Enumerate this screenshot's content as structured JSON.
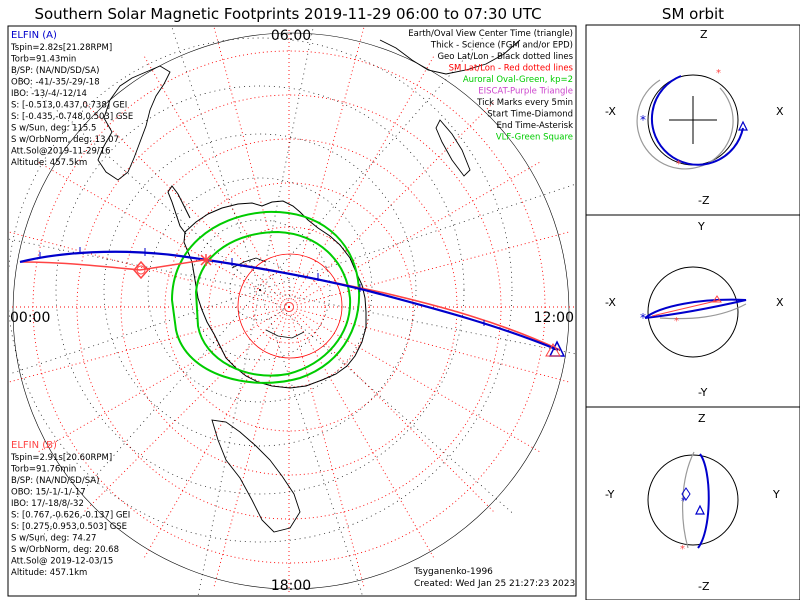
{
  "header": {
    "title": "Southern Solar Magnetic Footprints 2019-11-29 06:00 to 07:30 UTC",
    "orbit_title": "SM orbit"
  },
  "map": {
    "time_labels": {
      "top": "06:00",
      "left": "00:00",
      "right": "12:00",
      "bottom": "18:00"
    }
  },
  "legend": [
    {
      "text": "Earth/Oval View Center Time (triangle)",
      "color": "#000000"
    },
    {
      "text": "Thick - Science (FGM and/or EPD)",
      "color": "#000000"
    },
    {
      "text": "Geo Lat/Lon - Black dotted lines",
      "color": "#000000"
    },
    {
      "text": "SM Lat/Lon - Red dotted lines",
      "color": "#ff0000"
    },
    {
      "text": "Auroral Oval-Green, kp=2",
      "color": "#00cc00"
    },
    {
      "text": "EISCAT-Purple Triangle",
      "color": "#cc44cc"
    },
    {
      "text": "Tick Marks every 5min",
      "color": "#000000"
    },
    {
      "text": "Start Time-Diamond",
      "color": "#000000"
    },
    {
      "text": "End Time-Asterisk",
      "color": "#000000"
    },
    {
      "text": "VLF-Green Square",
      "color": "#00cc00"
    }
  ],
  "elfin_a": {
    "title": "ELFIN (A)",
    "color": "#0000cc",
    "lines": [
      "Tspin=2.82s[21.28RPM]",
      "Torb=91.43min",
      "B/SP: (NA/ND/SD/SA)",
      "OBO: -41/-35/-29/-18",
      "IBO: -13/-4/-12/14",
      "S: [-0.513,0.437,0.738] GEI",
      "S: [-0.435,-0.748,0.503] GSE",
      "S w/Sun, deg: 115.5",
      "S w/OrbNorm, deg: 13.07",
      "Att.Sol@2019-11-29/16",
      "Altitude: 457.5km"
    ]
  },
  "elfin_b": {
    "title": "ELFIN (B)",
    "color": "#ff4444",
    "lines": [
      "Tspin=2.91s[20.60RPM]",
      "Torb=91.76min",
      "B/SP: (NA/ND/SD/SA)",
      "OBO: 15/-1/-1/-17",
      "IBO: 17/-18/8/-32",
      "S: [0.767,-0.626,-0.137] GEI",
      "S: [0.275,0.953,0.503] GSE",
      "S w/Sun, deg: 74.27",
      "S w/OrbNorm, deg: 20.68",
      "Att.Sol@ 2019-12-03/15",
      "Altitude: 457.1km"
    ]
  },
  "footer": {
    "credit": "Tsyganenko-1996",
    "created": "Created: Wed Jan 25 21:27:23 2023"
  },
  "orbit_panels": [
    {
      "top": "Z",
      "bottom": "-Z",
      "left": "-X",
      "right": "X"
    },
    {
      "top": "Y",
      "bottom": "-Y",
      "left": "-X",
      "right": "X"
    },
    {
      "top": "Z",
      "bottom": "-Z",
      "left": "-Y",
      "right": "Y"
    }
  ],
  "colors": {
    "elfin_a": "#0000cc",
    "elfin_b": "#ff4444",
    "auroral_oval": "#00cc00",
    "sm_grid": "#ff0000",
    "geo_grid": "#000000"
  }
}
